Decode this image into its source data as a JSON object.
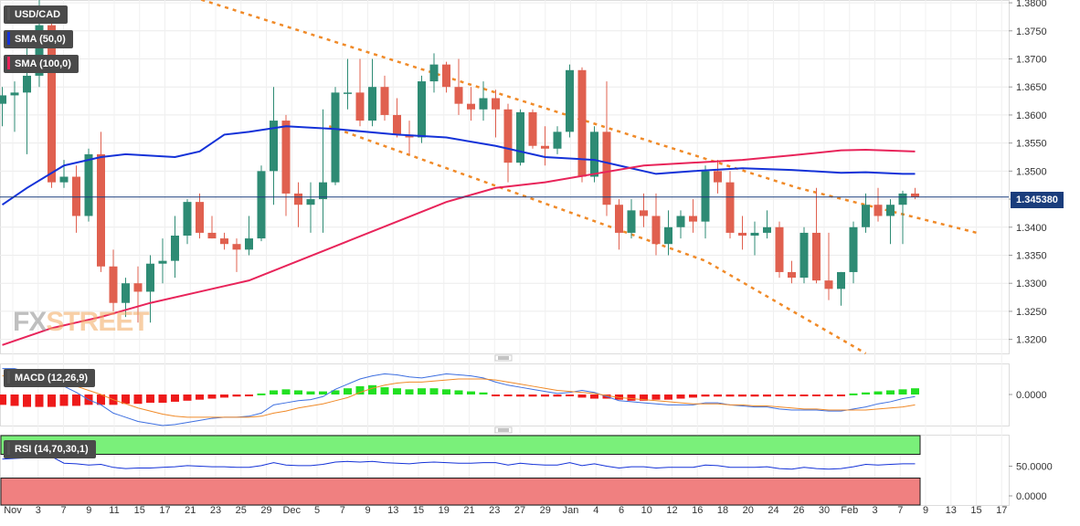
{
  "colors": {
    "bull": "#2e8b74",
    "bear": "#e0604f",
    "sma50": "#1432d8",
    "sma100": "#e8245a",
    "channel": "#f08a28",
    "last_price_line": "#1a3d7c",
    "macd_line": "#3d6fe0",
    "signal_line": "#f08a28",
    "hist_pos": "#22e022",
    "hist_neg": "#ee1a1a",
    "rsi_upper": "#7af07a",
    "rsi_lower": "#f08080",
    "rsi_line": "#1432d8"
  },
  "watermark": {
    "fx": "FX",
    "street": "STREET"
  },
  "labels": {
    "symbol": "USD/CAD",
    "sma50": "SMA (50,0)",
    "sma100": "SMA (100,0)",
    "macd": "MACD (12,26,9)",
    "rsi": "RSI (14,70,30,1)",
    "last_price": "1.345380"
  },
  "chart_data": [
    {
      "type": "candlestick",
      "symbol": "USD/CAD",
      "ylim": [
        1.3175,
        1.3805
      ],
      "y_ticks": [
        "1.3800",
        "1.3750",
        "1.3700",
        "1.3650",
        "1.3600",
        "1.3550",
        "1.3500",
        "1.3450",
        "1.3400",
        "1.3350",
        "1.3300",
        "1.3250",
        "1.3200"
      ],
      "last_price": 1.34538,
      "x_tick_labels": [
        "Nov",
        "3",
        "7",
        "9",
        "11",
        "15",
        "17",
        "21",
        "23",
        "25",
        "29",
        "Dec",
        "5",
        "7",
        "9",
        "13",
        "15",
        "19",
        "21",
        "23",
        "27",
        "29",
        "Jan",
        "4",
        "6",
        "10",
        "12",
        "16",
        "18",
        "20",
        "24",
        "26",
        "30",
        "Feb",
        "3",
        "7",
        "9",
        "13",
        "15",
        "17"
      ],
      "candles": [
        [
          1.362,
          1.365,
          1.358,
          1.3635
        ],
        [
          1.3635,
          1.366,
          1.357,
          1.364
        ],
        [
          1.364,
          1.373,
          1.353,
          1.367
        ],
        [
          1.367,
          1.3805,
          1.365,
          1.376
        ],
        [
          1.376,
          1.378,
          1.347,
          1.348
        ],
        [
          1.348,
          1.352,
          1.347,
          1.349
        ],
        [
          1.349,
          1.351,
          1.339,
          1.342
        ],
        [
          1.342,
          1.354,
          1.341,
          1.353
        ],
        [
          1.353,
          1.357,
          1.332,
          1.333
        ],
        [
          1.333,
          1.336,
          1.325,
          1.3265
        ],
        [
          1.3265,
          1.331,
          1.324,
          1.33
        ],
        [
          1.33,
          1.333,
          1.323,
          1.3285
        ],
        [
          1.3285,
          1.335,
          1.323,
          1.3335
        ],
        [
          1.3335,
          1.338,
          1.33,
          1.334
        ],
        [
          1.334,
          1.342,
          1.331,
          1.3385
        ],
        [
          1.3385,
          1.345,
          1.337,
          1.3445
        ],
        [
          1.3445,
          1.346,
          1.338,
          1.339
        ],
        [
          1.339,
          1.342,
          1.338,
          1.338
        ],
        [
          1.338,
          1.339,
          1.336,
          1.337
        ],
        [
          1.337,
          1.338,
          1.332,
          1.336
        ],
        [
          1.336,
          1.342,
          1.335,
          1.338
        ],
        [
          1.338,
          1.351,
          1.3375,
          1.35
        ],
        [
          1.35,
          1.365,
          1.344,
          1.359
        ],
        [
          1.359,
          1.36,
          1.342,
          1.346
        ],
        [
          1.346,
          1.348,
          1.34,
          1.344
        ],
        [
          1.344,
          1.348,
          1.339,
          1.345
        ],
        [
          1.345,
          1.361,
          1.339,
          1.348
        ],
        [
          1.348,
          1.365,
          1.3475,
          1.364
        ],
        [
          1.364,
          1.37,
          1.361,
          1.364
        ],
        [
          1.364,
          1.37,
          1.358,
          1.359
        ],
        [
          1.359,
          1.37,
          1.358,
          1.365
        ],
        [
          1.365,
          1.367,
          1.359,
          1.36
        ],
        [
          1.36,
          1.363,
          1.356,
          1.3565
        ],
        [
          1.3565,
          1.359,
          1.353,
          1.356
        ],
        [
          1.356,
          1.367,
          1.355,
          1.366
        ],
        [
          1.366,
          1.371,
          1.364,
          1.369
        ],
        [
          1.369,
          1.3695,
          1.364,
          1.365
        ],
        [
          1.365,
          1.37,
          1.36,
          1.362
        ],
        [
          1.362,
          1.365,
          1.359,
          1.361
        ],
        [
          1.361,
          1.366,
          1.359,
          1.363
        ],
        [
          1.363,
          1.3645,
          1.356,
          1.361
        ],
        [
          1.361,
          1.362,
          1.348,
          1.3515
        ],
        [
          1.3515,
          1.361,
          1.351,
          1.3605
        ],
        [
          1.3605,
          1.361,
          1.354,
          1.3545
        ],
        [
          1.3545,
          1.358,
          1.351,
          1.354
        ],
        [
          1.354,
          1.358,
          1.353,
          1.357
        ],
        [
          1.357,
          1.369,
          1.356,
          1.368
        ],
        [
          1.368,
          1.3685,
          1.348,
          1.349
        ],
        [
          1.349,
          1.358,
          1.348,
          1.357
        ],
        [
          1.357,
          1.366,
          1.342,
          1.344
        ],
        [
          1.344,
          1.345,
          1.336,
          1.339
        ],
        [
          1.339,
          1.345,
          1.338,
          1.343
        ],
        [
          1.343,
          1.346,
          1.34,
          1.342
        ],
        [
          1.342,
          1.346,
          1.335,
          1.337
        ],
        [
          1.337,
          1.343,
          1.335,
          1.34
        ],
        [
          1.34,
          1.343,
          1.338,
          1.342
        ],
        [
          1.342,
          1.345,
          1.339,
          1.341
        ],
        [
          1.341,
          1.351,
          1.338,
          1.35
        ],
        [
          1.35,
          1.352,
          1.346,
          1.348
        ],
        [
          1.348,
          1.35,
          1.338,
          1.339
        ],
        [
          1.339,
          1.342,
          1.336,
          1.3385
        ],
        [
          1.3385,
          1.341,
          1.335,
          1.339
        ],
        [
          1.339,
          1.343,
          1.338,
          1.34
        ],
        [
          1.34,
          1.341,
          1.331,
          1.332
        ],
        [
          1.332,
          1.334,
          1.33,
          1.331
        ],
        [
          1.331,
          1.34,
          1.33,
          1.339
        ],
        [
          1.339,
          1.347,
          1.33,
          1.3305
        ],
        [
          1.3305,
          1.339,
          1.327,
          1.329
        ],
        [
          1.329,
          1.332,
          1.326,
          1.332
        ],
        [
          1.332,
          1.341,
          1.33,
          1.34
        ],
        [
          1.34,
          1.346,
          1.339,
          1.344
        ],
        [
          1.344,
          1.347,
          1.341,
          1.342
        ],
        [
          1.342,
          1.345,
          1.337,
          1.344
        ],
        [
          1.344,
          1.3465,
          1.337,
          1.346
        ],
        [
          1.346,
          1.347,
          1.345,
          1.3454
        ]
      ],
      "sma50": [
        [
          0,
          1.344
        ],
        [
          2,
          1.347
        ],
        [
          5,
          1.351
        ],
        [
          8,
          1.3525
        ],
        [
          10,
          1.353
        ],
        [
          14,
          1.3525
        ],
        [
          16,
          1.3535
        ],
        [
          18,
          1.3565
        ],
        [
          20,
          1.357
        ],
        [
          23,
          1.358
        ],
        [
          27,
          1.3575
        ],
        [
          32,
          1.3565
        ],
        [
          36,
          1.356
        ],
        [
          40,
          1.3545
        ],
        [
          44,
          1.3525
        ],
        [
          48,
          1.352
        ],
        [
          50,
          1.351
        ],
        [
          53,
          1.3495
        ],
        [
          56,
          1.35
        ],
        [
          60,
          1.3505
        ],
        [
          64,
          1.3502
        ],
        [
          68,
          1.3497
        ],
        [
          70,
          1.3498
        ],
        [
          73,
          1.3495
        ],
        [
          74,
          1.3495
        ]
      ],
      "sma100": [
        [
          0,
          1.319
        ],
        [
          2,
          1.3205
        ],
        [
          4,
          1.322
        ],
        [
          8,
          1.324
        ],
        [
          12,
          1.3265
        ],
        [
          16,
          1.3285
        ],
        [
          20,
          1.3305
        ],
        [
          24,
          1.334
        ],
        [
          28,
          1.3375
        ],
        [
          32,
          1.341
        ],
        [
          36,
          1.3445
        ],
        [
          40,
          1.347
        ],
        [
          44,
          1.348
        ],
        [
          48,
          1.3495
        ],
        [
          52,
          1.351
        ],
        [
          56,
          1.3515
        ],
        [
          60,
          1.352
        ],
        [
          64,
          1.3528
        ],
        [
          68,
          1.3537
        ],
        [
          70,
          1.3538
        ],
        [
          74,
          1.3535
        ]
      ],
      "channel_upper": [
        [
          15.5,
          1.381
        ],
        [
          64.5,
          1.347
        ],
        [
          79,
          1.339
        ]
      ],
      "channel_lower": [
        [
          26.5,
          1.358
        ],
        [
          57,
          1.334
        ],
        [
          70,
          1.3175
        ]
      ]
    },
    {
      "type": "histogram+line",
      "indicator": "MACD (12,26,9)",
      "y_tick": "0.0000",
      "histogram": [
        -0.001,
        -0.0011,
        -0.0012,
        -0.0012,
        -0.0012,
        -0.0011,
        -0.0011,
        -0.001,
        -0.001,
        -0.001,
        -0.0009,
        -0.0009,
        -0.0008,
        -0.0008,
        -0.0007,
        -0.0006,
        -0.0005,
        -0.0004,
        -0.0003,
        -0.0002,
        -0.0001,
        0.0001,
        0.0004,
        0.0005,
        0.0004,
        0.0003,
        0.0003,
        0.0004,
        0.0006,
        0.0008,
        0.0009,
        0.0007,
        0.0006,
        0.0005,
        0.0006,
        0.0006,
        0.0005,
        0.0004,
        0.0003,
        0.0002,
        -0.0001,
        -0.0001,
        -0.0002,
        -0.0002,
        -0.0002,
        -0.0002,
        -0.0001,
        -0.0003,
        -0.0004,
        -0.0004,
        -0.0005,
        -0.0006,
        -0.0006,
        -0.0005,
        -0.0005,
        -0.0004,
        -0.0003,
        -0.0002,
        -0.0002,
        -0.0002,
        -0.0002,
        -0.0002,
        -0.0002,
        -0.0001,
        -0.0001,
        -0.0001,
        -0.0001,
        -0.0001,
        -0.0001,
        0.0001,
        0.0002,
        0.0003,
        0.0004,
        0.0005,
        0.0006
      ],
      "macd": [
        0.0025,
        0.0025,
        0.0022,
        0.002,
        0.0018,
        0.0008,
        0.0002,
        -0.0005,
        -0.001,
        -0.0018,
        -0.0022,
        -0.0026,
        -0.0028,
        -0.003,
        -0.0029,
        -0.0027,
        -0.0025,
        -0.0023,
        -0.0022,
        -0.0022,
        -0.0021,
        -0.0018,
        -0.001,
        -0.0008,
        -0.0006,
        -0.0005,
        -0.0002,
        0.0005,
        0.001,
        0.0015,
        0.0018,
        0.002,
        0.0019,
        0.0017,
        0.0016,
        0.0018,
        0.002,
        0.0019,
        0.0018,
        0.0016,
        0.0012,
        0.0009,
        0.0007,
        0.0005,
        0.0003,
        0.0001,
        0.0002,
        0.0004,
        0.0002,
        -0.0002,
        -0.0006,
        -0.0007,
        -0.0008,
        -0.0009,
        -0.001,
        -0.001,
        -0.001,
        -0.0008,
        -0.0008,
        -0.001,
        -0.0011,
        -0.0012,
        -0.0012,
        -0.0014,
        -0.0015,
        -0.0015,
        -0.0015,
        -0.0016,
        -0.0016,
        -0.0014,
        -0.0012,
        -0.0009,
        -0.0007,
        -0.0004,
        -0.0002
      ],
      "signal": [
        0.0018,
        0.0018,
        0.0017,
        0.0016,
        0.0015,
        0.0012,
        0.0008,
        0.0004,
        0.0,
        -0.0005,
        -0.0009,
        -0.0013,
        -0.0016,
        -0.0019,
        -0.0021,
        -0.0022,
        -0.0022,
        -0.0022,
        -0.0022,
        -0.0022,
        -0.0022,
        -0.0021,
        -0.0018,
        -0.0016,
        -0.0013,
        -0.0011,
        -0.0009,
        -0.0006,
        -0.0003,
        0.0002,
        0.0006,
        0.0009,
        0.0011,
        0.0012,
        0.0012,
        0.0013,
        0.0014,
        0.0015,
        0.0015,
        0.0015,
        0.0014,
        0.0012,
        0.001,
        0.0008,
        0.0006,
        0.0004,
        0.0003,
        0.0002,
        0.0001,
        -0.0001,
        -0.0003,
        -0.0004,
        -0.0005,
        -0.0006,
        -0.0007,
        -0.0008,
        -0.0009,
        -0.0009,
        -0.0009,
        -0.001,
        -0.001,
        -0.0011,
        -0.0011,
        -0.0012,
        -0.0013,
        -0.0014,
        -0.0014,
        -0.0015,
        -0.0015,
        -0.0015,
        -0.0015,
        -0.0014,
        -0.0013,
        -0.0012,
        -0.001
      ]
    },
    {
      "type": "line",
      "indicator": "RSI (14,70,30,1)",
      "y_ticks": [
        "50.0000",
        "0.0000"
      ],
      "upper_band": 70,
      "lower_band": 30,
      "rsi": [
        62,
        63,
        64,
        65,
        66,
        55,
        54,
        52,
        53,
        48,
        46,
        47,
        47,
        48,
        49,
        51,
        50,
        49,
        49,
        48,
        48,
        51,
        56,
        52,
        51,
        51,
        53,
        57,
        58,
        57,
        58,
        56,
        55,
        54,
        56,
        57,
        56,
        55,
        55,
        56,
        56,
        52,
        55,
        53,
        52,
        52,
        56,
        51,
        54,
        50,
        47,
        49,
        49,
        47,
        48,
        48,
        48,
        52,
        51,
        48,
        48,
        48,
        49,
        46,
        45,
        48,
        46,
        45,
        46,
        49,
        53,
        52,
        53,
        54,
        54
      ]
    }
  ]
}
